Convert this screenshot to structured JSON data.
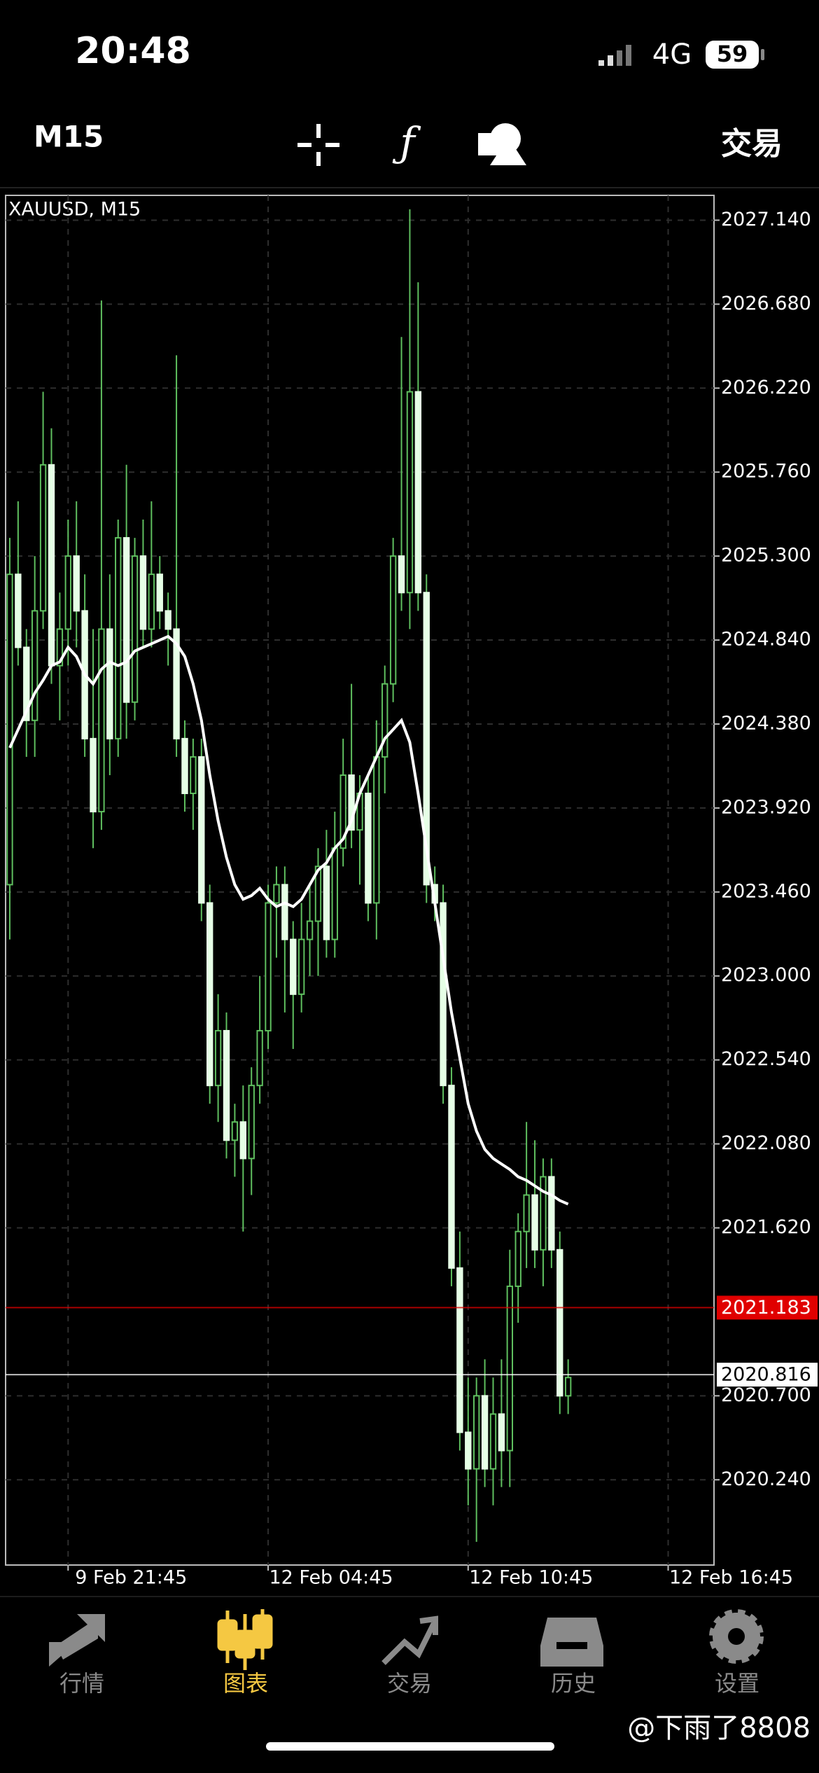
{
  "status_bar": {
    "time": "20:48",
    "network": "4G",
    "battery": "59"
  },
  "toolbar": {
    "timeframe": "M15",
    "trade": "交易"
  },
  "chart_data": {
    "type": "candlestick",
    "title": "XAUUSD, M15",
    "categories": [
      null,
      null,
      null,
      null,
      null,
      null,
      null,
      "9 Feb 21:45",
      null,
      null,
      null,
      null,
      null,
      null,
      null,
      null,
      null,
      null,
      null,
      null,
      null,
      null,
      null,
      null,
      null,
      null,
      null,
      null,
      null,
      null,
      null,
      "12 Feb 04:45",
      null,
      null,
      null,
      null,
      null,
      null,
      null,
      null,
      null,
      null,
      null,
      null,
      null,
      null,
      null,
      null,
      null,
      null,
      null,
      null,
      null,
      null,
      null,
      "12 Feb 10:45",
      null,
      null,
      null,
      null,
      null,
      null,
      null,
      null,
      null,
      null,
      null,
      null,
      null,
      null,
      null,
      null,
      null,
      null,
      null,
      null,
      null,
      null,
      null,
      "12 Feb 16:45",
      null,
      null,
      null,
      null,
      null
    ],
    "open": [
      2023.5,
      2025.2,
      2024.8,
      2024.4,
      2025.0,
      2025.8,
      2024.7,
      2024.9,
      2025.3,
      2025.0,
      2024.3,
      2023.9,
      2024.9,
      2024.3,
      2025.4,
      2024.5,
      2025.3,
      2024.9,
      2025.2,
      2025.0,
      2024.9,
      2024.3,
      2024.0,
      2024.2,
      2023.4,
      2022.4,
      2022.7,
      2022.1,
      2022.2,
      2022.0,
      2022.4,
      2022.7,
      2023.4,
      2023.5,
      2023.2,
      2022.9,
      2023.2,
      2023.3,
      2023.6,
      2023.2,
      2023.7,
      2024.1,
      2023.8,
      2024.0,
      2023.4,
      2024.2,
      2024.6,
      2025.3,
      2025.1,
      2026.2,
      2025.1,
      2023.5,
      2023.4,
      2022.4,
      2021.4,
      2020.5,
      2020.3,
      2020.7,
      2020.3,
      2020.6,
      2020.4,
      2021.3,
      2021.6,
      2021.8,
      2021.5,
      2021.9,
      2021.5,
      2020.7,
      null,
      null,
      null,
      null,
      null,
      null,
      null,
      null,
      null,
      null,
      null,
      null,
      null,
      null,
      null,
      null,
      null
    ],
    "high": [
      2025.4,
      2025.6,
      2024.9,
      2025.3,
      2026.2,
      2026.0,
      2025.1,
      2025.5,
      2025.6,
      2025.2,
      2024.9,
      2026.7,
      2025.2,
      2025.5,
      2025.8,
      2025.4,
      2025.5,
      2025.6,
      2025.3,
      2025.1,
      2026.4,
      2024.4,
      2024.3,
      2024.3,
      2023.5,
      2022.9,
      2022.8,
      2022.3,
      2022.4,
      2022.5,
      2023.0,
      2023.5,
      2023.6,
      2023.6,
      2023.3,
      2023.4,
      2023.5,
      2023.7,
      2023.8,
      2023.9,
      2024.3,
      2024.6,
      2024.1,
      2024.1,
      2024.4,
      2024.7,
      2025.4,
      2026.5,
      2027.2,
      2026.8,
      2025.2,
      2023.6,
      2023.5,
      2022.5,
      2021.6,
      2020.8,
      2020.8,
      2020.9,
      2020.8,
      2020.9,
      2021.5,
      2021.7,
      2022.2,
      2022.1,
      2022.0,
      2022.0,
      2021.6,
      2020.9,
      null,
      null,
      null,
      null,
      null,
      null,
      null,
      null,
      null,
      null,
      null,
      null,
      null,
      null,
      null,
      null,
      null
    ],
    "low": [
      2023.2,
      2024.7,
      2024.2,
      2024.2,
      2024.9,
      2024.6,
      2024.4,
      2024.7,
      2024.8,
      2024.2,
      2023.7,
      2023.8,
      2024.1,
      2024.2,
      2024.3,
      2024.4,
      2024.8,
      2024.8,
      2024.9,
      2024.7,
      2024.2,
      2023.9,
      2023.8,
      2023.3,
      2022.3,
      2022.2,
      2022.0,
      2021.9,
      2021.6,
      2021.8,
      2022.3,
      2022.6,
      2023.1,
      2022.8,
      2022.6,
      2022.8,
      2023.0,
      2023.0,
      2023.1,
      2023.1,
      2023.6,
      2023.7,
      2023.5,
      2023.3,
      2023.2,
      2024.0,
      2024.5,
      2025.0,
      2024.9,
      2025.0,
      2023.4,
      2023.3,
      2022.3,
      2021.3,
      2020.4,
      2020.1,
      2019.9,
      2020.2,
      2020.1,
      2020.2,
      2020.2,
      2021.1,
      2021.4,
      2021.4,
      2021.3,
      2021.4,
      2020.6,
      2020.6,
      null,
      null,
      null,
      null,
      null,
      null,
      null,
      null,
      null,
      null,
      null,
      null,
      null,
      null,
      null,
      null,
      null
    ],
    "close": [
      2025.2,
      2024.8,
      2024.4,
      2025.0,
      2025.8,
      2024.7,
      2024.9,
      2025.3,
      2025.0,
      2024.3,
      2023.9,
      2024.9,
      2024.3,
      2025.4,
      2024.5,
      2025.3,
      2024.9,
      2025.2,
      2025.0,
      2024.9,
      2024.3,
      2024.0,
      2024.2,
      2023.4,
      2022.4,
      2022.7,
      2022.1,
      2022.2,
      2022.0,
      2022.4,
      2022.7,
      2023.4,
      2023.5,
      2023.2,
      2022.9,
      2023.2,
      2023.3,
      2023.6,
      2023.2,
      2023.7,
      2024.1,
      2023.8,
      2024.0,
      2023.4,
      2024.2,
      2024.6,
      2025.3,
      2025.1,
      2026.2,
      2025.1,
      2023.5,
      2023.4,
      2022.4,
      2021.4,
      2020.5,
      2020.3,
      2020.7,
      2020.3,
      2020.6,
      2020.4,
      2021.3,
      2021.6,
      2021.8,
      2021.5,
      2021.9,
      2021.5,
      2020.7,
      2020.8,
      null,
      null,
      null,
      null,
      null,
      null,
      null,
      null,
      null,
      null,
      null,
      null,
      null,
      null,
      null,
      null,
      null
    ],
    "ma": {
      "color": "#ffffff",
      "values": [
        2024.25,
        2024.35,
        2024.45,
        2024.55,
        2024.62,
        2024.7,
        2024.72,
        2024.8,
        2024.75,
        2024.65,
        2024.6,
        2024.68,
        2024.72,
        2024.7,
        2024.72,
        2024.78,
        2024.8,
        2024.82,
        2024.84,
        2024.86,
        2024.82,
        2024.75,
        2024.6,
        2024.4,
        2024.1,
        2023.85,
        2023.65,
        2023.5,
        2023.42,
        2023.44,
        2023.48,
        2023.42,
        2023.38,
        2023.4,
        2023.38,
        2023.42,
        2023.5,
        2023.58,
        2023.62,
        2023.7,
        2023.75,
        2023.85,
        2024.0,
        2024.1,
        2024.2,
        2024.3,
        2024.35,
        2024.4,
        2024.28,
        2024.0,
        2023.7,
        2023.4,
        2023.1,
        2022.8,
        2022.55,
        2022.3,
        2022.15,
        2022.05,
        2022.0,
        2021.97,
        2021.94,
        2021.9,
        2021.88,
        2021.85,
        2021.82,
        2021.8,
        2021.77,
        2021.75,
        null,
        null,
        null,
        null,
        null,
        null,
        null,
        null,
        null,
        null,
        null,
        null,
        null,
        null,
        null,
        null,
        null
      ]
    },
    "up_color": "#5fbf5f",
    "down_color": "#e6ffe6",
    "wick_color": "#5fbf5f",
    "ylim": [
      2019.773,
      2027.276
    ],
    "yticks": [
      {
        "value": 2027.14,
        "label": "2027.140"
      },
      {
        "value": 2026.68,
        "label": "2026.680"
      },
      {
        "value": 2026.22,
        "label": "2026.220"
      },
      {
        "value": 2025.76,
        "label": "2025.760"
      },
      {
        "value": 2025.3,
        "label": "2025.300"
      },
      {
        "value": 2024.84,
        "label": "2024.840"
      },
      {
        "value": 2024.38,
        "label": "2024.380"
      },
      {
        "value": 2023.92,
        "label": "2023.920"
      },
      {
        "value": 2023.46,
        "label": "2023.460"
      },
      {
        "value": 2023.0,
        "label": "2023.000"
      },
      {
        "value": 2022.54,
        "label": "2022.540"
      },
      {
        "value": 2022.08,
        "label": "2022.080"
      },
      {
        "value": 2021.62,
        "label": "2021.620"
      },
      {
        "value": 2020.7,
        "label": "2020.700"
      },
      {
        "value": 2020.24,
        "label": "2020.240"
      }
    ],
    "price_lines": [
      {
        "value": 2021.183,
        "label": "2021.183",
        "color": "#e00000",
        "text_color": "#ffffff"
      },
      {
        "value": 2020.816,
        "label": "2020.816",
        "color": "#ffffff",
        "text_color": "#000000"
      }
    ],
    "grid": true
  },
  "tab_bar": {
    "tabs": [
      "行情",
      "图表",
      "交易",
      "历史",
      "设置"
    ],
    "active": 1,
    "active_color": "#f5c842",
    "color": "#8a8a8a"
  },
  "watermark": "@下雨了8808"
}
